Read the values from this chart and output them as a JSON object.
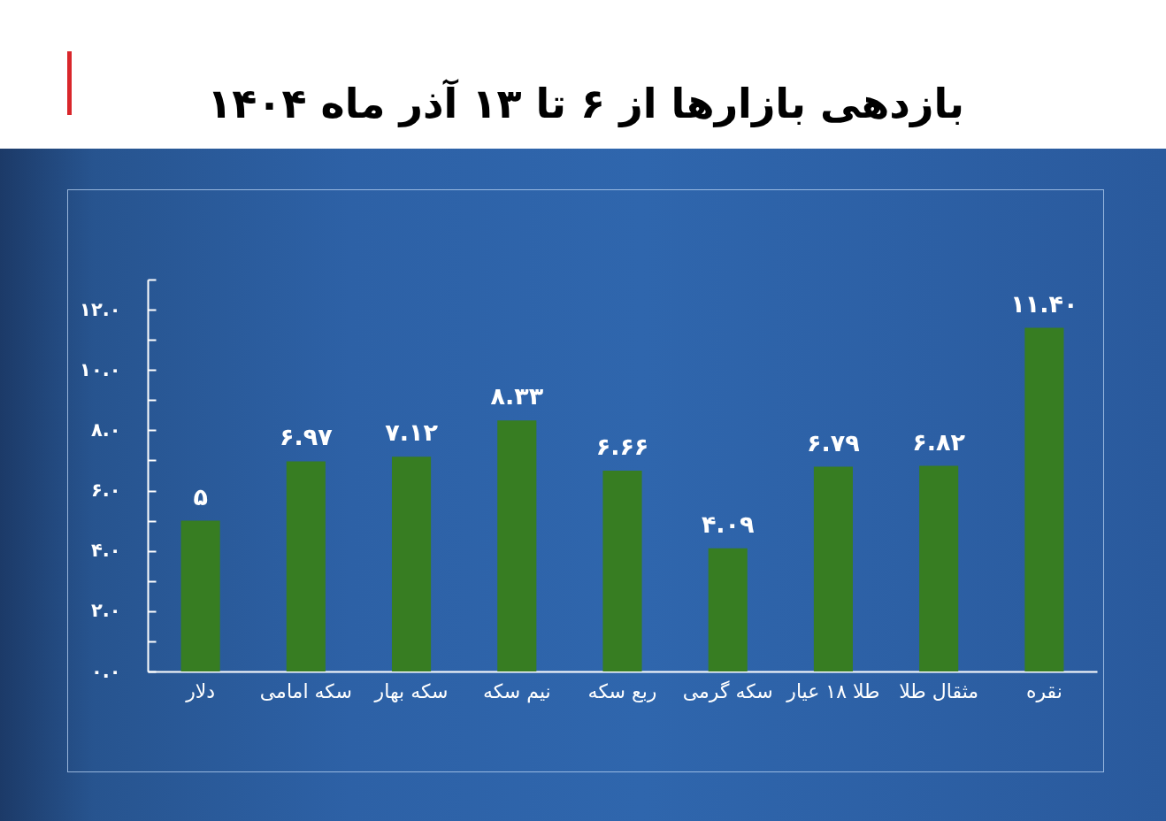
{
  "chart_data": {
    "type": "bar",
    "title": "بازدهی بازارها از ۶ تا ۱۳ آذر ماه ۱۴۰۴",
    "categories": [
      "دلار",
      "سکه امامی",
      "سکه بهار",
      "نیم سکه",
      "ربع سکه",
      "سکه گرمی",
      "طلا ۱۸ عیار",
      "مثقال طلا",
      "نقره"
    ],
    "values": [
      5,
      6.97,
      7.12,
      8.33,
      6.66,
      4.09,
      6.79,
      6.82,
      11.4
    ],
    "value_labels": [
      "۵",
      "۶.۹۷",
      "۷.۱۲",
      "۸.۳۳",
      "۶.۶۶",
      "۴.۰۹",
      "۶.۷۹",
      "۶.۸۲",
      "۱۱.۴۰"
    ],
    "color": "#377d22",
    "ylim": [
      0,
      13
    ],
    "yticks": [
      {
        "value": 0,
        "label": "۰.۰"
      },
      {
        "value": 1,
        "label": null
      },
      {
        "value": 2,
        "label": "۲.۰"
      },
      {
        "value": 3,
        "label": null
      },
      {
        "value": 4,
        "label": "۴.۰"
      },
      {
        "value": 5,
        "label": null
      },
      {
        "value": 6,
        "label": "۶.۰"
      },
      {
        "value": 7,
        "label": null
      },
      {
        "value": 8,
        "label": "۸.۰"
      },
      {
        "value": 9,
        "label": null
      },
      {
        "value": 10,
        "label": "۱۰.۰"
      },
      {
        "value": 11,
        "label": null
      },
      {
        "value": 12,
        "label": "۱۲.۰"
      },
      {
        "value": 13,
        "label": null
      }
    ],
    "grid": false
  }
}
